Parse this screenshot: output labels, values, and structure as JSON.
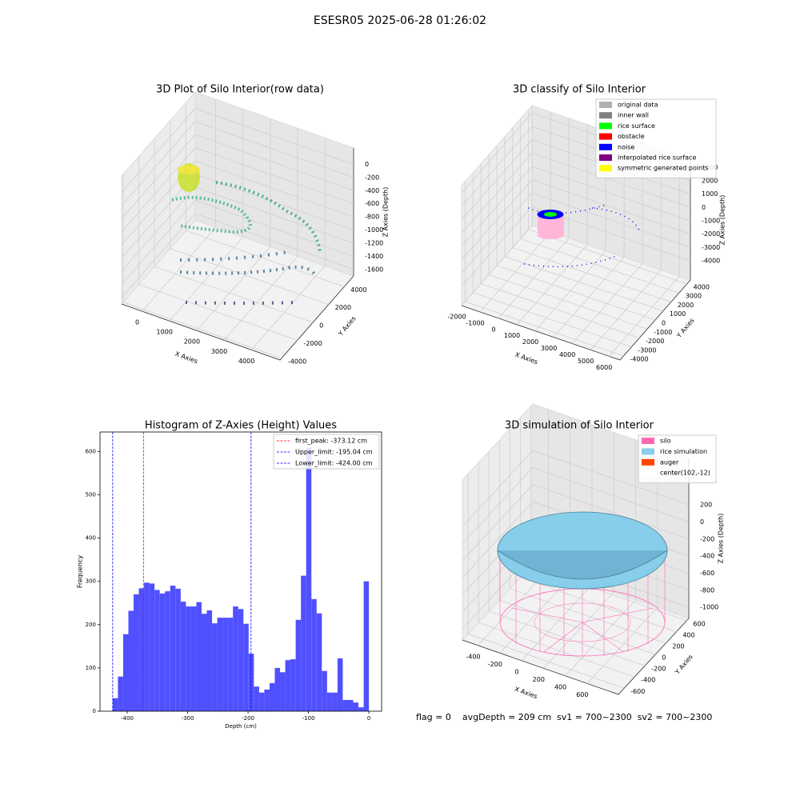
{
  "suptitle": "ESESR05 2025-06-28 01:26:02",
  "footer": "flag = 0    avgDepth = 209 cm  sv1 = 700~2300  sv2 = 700~2300",
  "chart_data": [
    {
      "type": "scatter3d",
      "title": "3D Plot of Silo Interior(row data)",
      "xlabel": "X Axies",
      "ylabel": "Y Axies",
      "zlabel": "Z Axies (Depth)",
      "xlim": [
        -750,
        5050
      ],
      "ylim": [
        -4200,
        5200
      ],
      "zlim": [
        -1700,
        250
      ],
      "xticks": [
        0,
        1000,
        2000,
        3000,
        4000
      ],
      "yticks": [
        -4000,
        -2000,
        0,
        2000,
        4000
      ],
      "zticks": [
        0,
        -200,
        -400,
        -600,
        -800,
        -1000,
        -1200,
        -1400,
        -1600
      ]
    },
    {
      "type": "scatter3d",
      "title": "3D classify of Silo Interior",
      "xlabel": "X Axies",
      "ylabel": "Y Axies",
      "zlabel": "Z Axies (Depth)",
      "xlim": [
        -2000,
        6600
      ],
      "ylim": [
        -4440,
        4440
      ],
      "zlim": [
        -5440,
        3560
      ],
      "xticks": [
        -2000,
        -1000,
        0,
        1000,
        2000,
        3000,
        4000,
        5000,
        6000
      ],
      "yticks": [
        -4000,
        -3000,
        -2000,
        -1000,
        0,
        1000,
        2000,
        3000,
        4000
      ],
      "zticks": [
        -4000,
        -3000,
        -2000,
        -1000,
        0,
        1000,
        2000,
        3000
      ],
      "legend": [
        {
          "name": "original data",
          "color": "#b0b0b0"
        },
        {
          "name": "inner wall",
          "color": "#808080"
        },
        {
          "name": "rice surface",
          "color": "#00ff00"
        },
        {
          "name": "obstacle",
          "color": "#ff0000"
        },
        {
          "name": "noise",
          "color": "#0000ff"
        },
        {
          "name": "interpolated rice surface",
          "color": "#800080"
        },
        {
          "name": "symmetric generated points",
          "color": "#ffff00"
        }
      ]
    },
    {
      "type": "histogram",
      "title": "Histogram of Z-Axies (Height) Values",
      "xlabel": "Depth (cm)",
      "ylabel": "Frequency",
      "color": "#5050ff",
      "xlim": [
        -445,
        21
      ],
      "ylim": [
        0,
        645
      ],
      "xticks": [
        -400,
        -300,
        -200,
        -100,
        0
      ],
      "yticks": [
        0,
        100,
        200,
        300,
        400,
        500,
        600
      ],
      "bins": [
        -424,
        -415.35,
        -406.69,
        -398.04,
        -389.39,
        -380.73,
        -372.08,
        -363.43,
        -354.78,
        -346.12,
        -337.47,
        -328.82,
        -320.16,
        -311.51,
        -302.86,
        -294.2,
        -285.55,
        -276.9,
        -268.24,
        -259.59,
        -250.94,
        -242.29,
        -233.63,
        -224.98,
        -216.33,
        -207.67,
        -199.02,
        -190.37,
        -181.71,
        -173.06,
        -164.41,
        -155.76,
        -147.1,
        -138.45,
        -129.8,
        -121.14,
        -112.49,
        -103.84,
        -95.18,
        -86.53,
        -77.88,
        -69.22,
        -60.57,
        -51.92,
        -43.27,
        -34.61,
        -25.96,
        -17.31,
        -8.65,
        0
      ],
      "counts": [
        30,
        80,
        178,
        232,
        270,
        284,
        297,
        295,
        280,
        272,
        277,
        290,
        283,
        253,
        242,
        242,
        252,
        225,
        233,
        203,
        216,
        216,
        216,
        242,
        236,
        202,
        133,
        57,
        43,
        50,
        65,
        100,
        90,
        118,
        120,
        211,
        313,
        609,
        259,
        226,
        93,
        43,
        43,
        122,
        26,
        26,
        20,
        9,
        300
      ],
      "vlines": [
        {
          "value": -373.12,
          "label": "first_peak: -373.12 cm",
          "color": "#ff0000"
        },
        {
          "value": -195.04,
          "label": "Upper_limit: -195.04 cm",
          "color": "#0000ff"
        },
        {
          "value": -424,
          "label": "Lower_limit: -424.00 cm",
          "color": "#0000ff"
        }
      ]
    },
    {
      "type": "surface3d",
      "title": "3D simulation of Silo Interior",
      "xlabel": "X Axies",
      "ylabel": "Y Axies",
      "zlabel": "Z Axies (Depth)",
      "xlim": [
        -543,
        887
      ],
      "ylim": [
        -710,
        640
      ],
      "zlim": [
        -1130,
        745
      ],
      "xticks": [
        -400,
        -200,
        0,
        200,
        400,
        600
      ],
      "yticks": [
        -600,
        -400,
        -200,
        0,
        200,
        400,
        600
      ],
      "zticks": [
        -1000,
        -800,
        -600,
        -400,
        -200,
        0,
        200
      ],
      "legend": [
        {
          "name": "silo",
          "color": "#ff69b4"
        },
        {
          "name": "rice simulation",
          "color": "#87ceeb"
        },
        {
          "name": "auger",
          "color": "#ff4500"
        },
        {
          "name": "center(102,-12)",
          "color": "#ffffff"
        }
      ]
    }
  ]
}
